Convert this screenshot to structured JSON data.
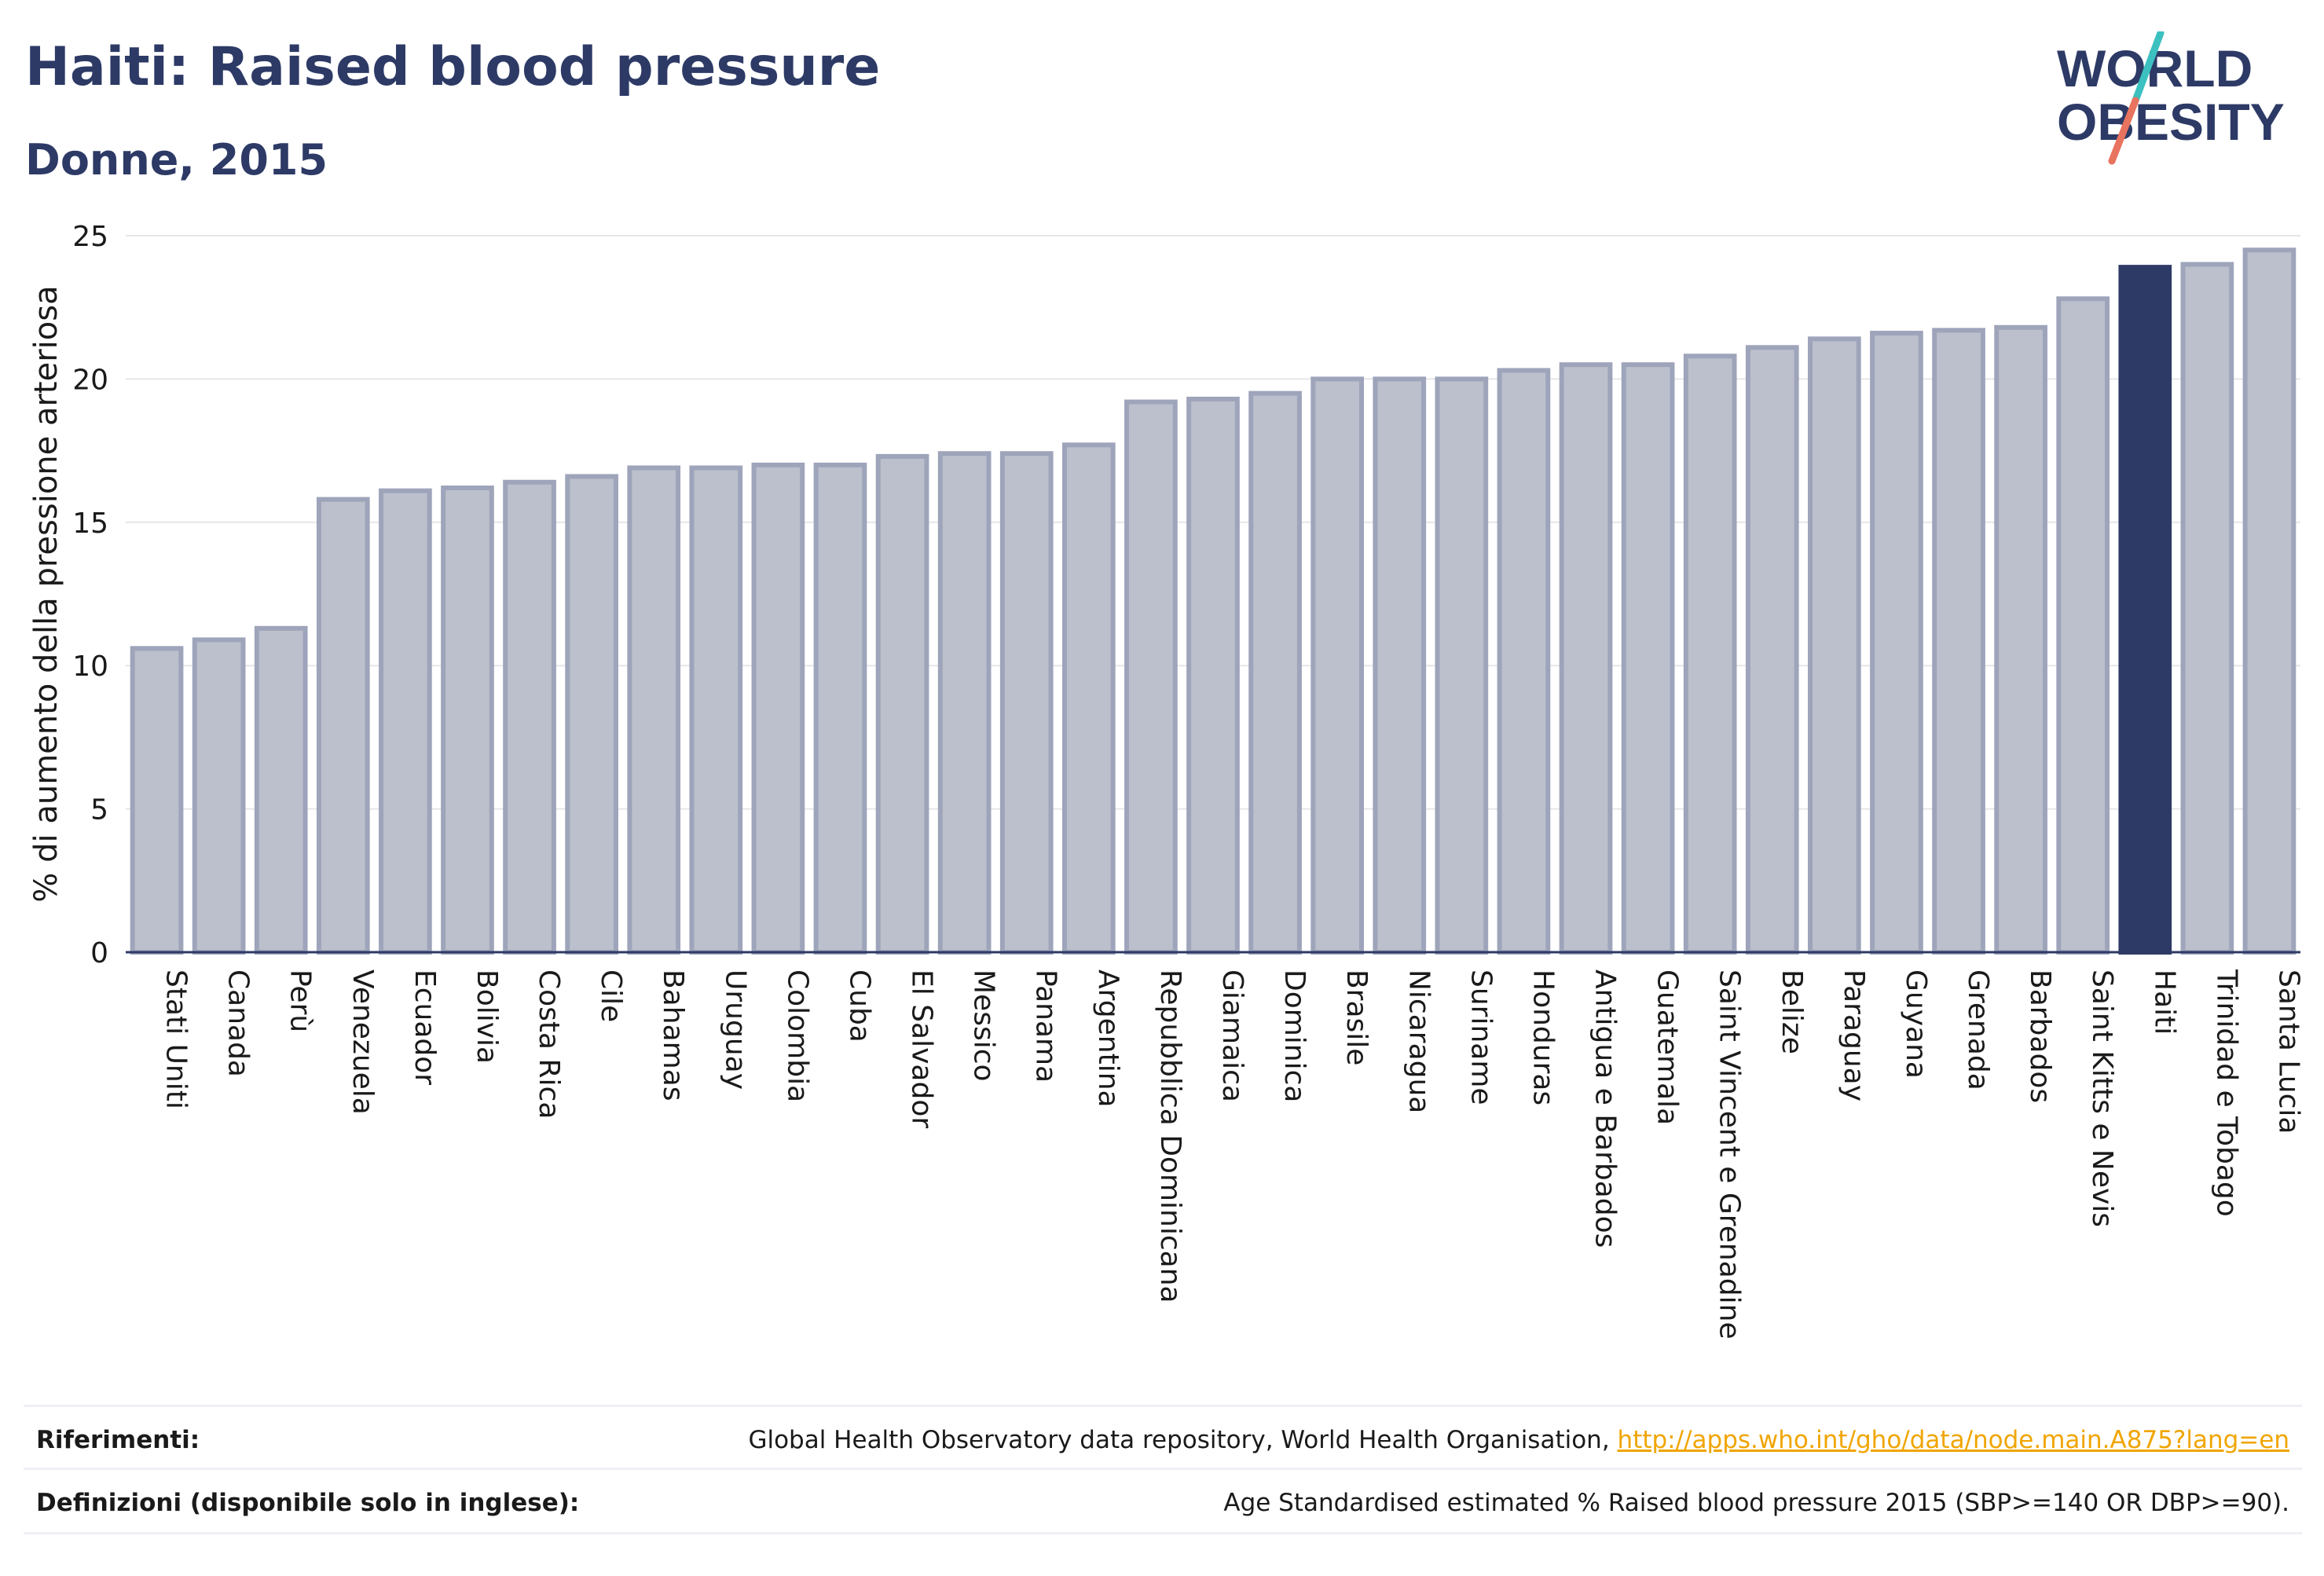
{
  "title": "Haiti: Raised blood pressure",
  "subtitle": "Donne, 2015",
  "logo": {
    "line1": "WORLD",
    "line2": "OBESITY"
  },
  "colors": {
    "title": "#2d3a66",
    "bar": "#bcc0cc",
    "bar_stroke": "#9ea4ba",
    "highlight": "#2d3a66",
    "gridline": "#e6e6ea",
    "link": "#f0a500",
    "logo_teal": "#3cc0c0",
    "logo_coral": "#e8735f"
  },
  "chart_data": {
    "type": "bar",
    "ylabel": "% di aumento della pressione arteriosa",
    "xlabel": "",
    "ylim": [
      0,
      25
    ],
    "yticks": [
      0,
      5,
      10,
      15,
      20,
      25
    ],
    "grid": true,
    "highlight": "Haiti",
    "categories": [
      "Stati Uniti",
      "Canada",
      "Perù",
      "Venezuela",
      "Ecuador",
      "Bolivia",
      "Costa Rica",
      "Cile",
      "Bahamas",
      "Uruguay",
      "Colombia",
      "Cuba",
      "El Salvador",
      "Messico",
      "Panama",
      "Argentina",
      "Repubblica Dominicana",
      "Giamaica",
      "Dominica",
      "Brasile",
      "Nicaragua",
      "Suriname",
      "Honduras",
      "Antigua e Barbados",
      "Guatemala",
      "Saint Vincent e Grenadine",
      "Belize",
      "Paraguay",
      "Guyana",
      "Grenada",
      "Barbados",
      "Saint Kitts e Nevis",
      "Haiti",
      "Trinidad e Tobago",
      "Santa Lucia"
    ],
    "values": [
      10.6,
      10.9,
      11.3,
      15.8,
      16.1,
      16.2,
      16.4,
      16.6,
      16.9,
      16.9,
      17.0,
      17.0,
      17.3,
      17.4,
      17.4,
      17.7,
      19.2,
      19.3,
      19.5,
      20.0,
      20.0,
      20.0,
      20.3,
      20.5,
      20.5,
      20.8,
      21.1,
      21.4,
      21.6,
      21.7,
      21.8,
      22.8,
      23.9,
      24.0,
      24.5
    ]
  },
  "footer": {
    "references_label": "Riferimenti:",
    "references_text": "Global Health Observatory data repository, World Health Organisation, ",
    "references_link": "http://apps.who.int/gho/data/node.main.A875?lang=en",
    "definitions_label": "Definizioni (disponibile solo in inglese):",
    "definitions_text": "Age Standardised estimated % Raised blood pressure 2015 (SBP>=140 OR DBP>=90)."
  }
}
